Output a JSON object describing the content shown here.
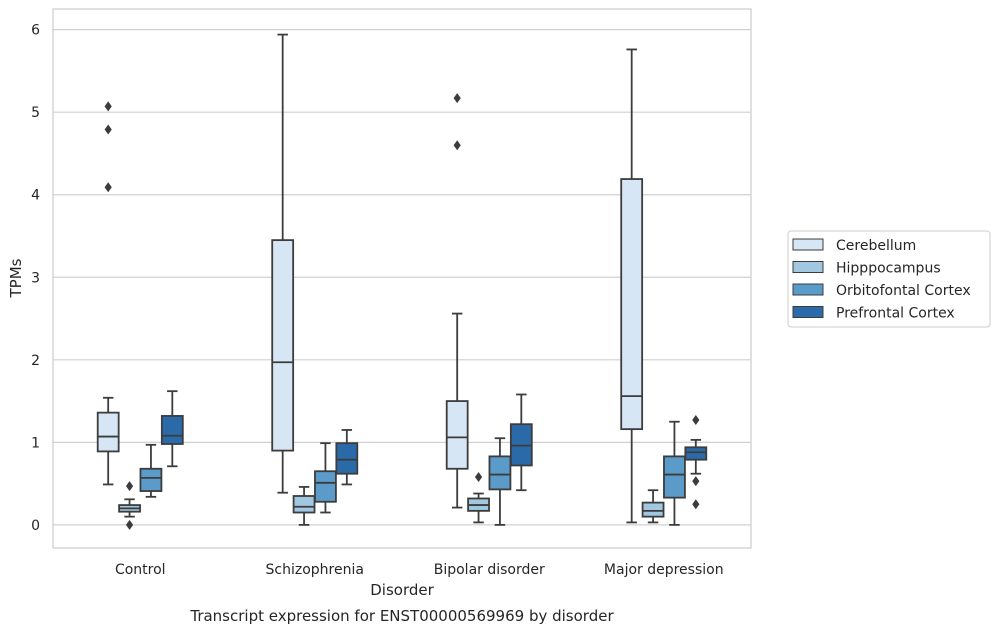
{
  "chart_data": {
    "type": "box",
    "caption": "Transcript expression for ENST00000569969 by disorder",
    "xlabel": "Disorder",
    "ylabel": "TPMs",
    "ylim": [
      -0.28,
      6.25
    ],
    "yticks": [
      0,
      1,
      2,
      3,
      4,
      5,
      6
    ],
    "grid": "horizontal",
    "legend_position": "right",
    "categories": [
      "Control",
      "Schizophrenia",
      "Bipolar disorder",
      "Major depression"
    ],
    "series": [
      {
        "name": "Cerebellum",
        "color": "#d6e6f4",
        "boxes": [
          {
            "whisker_low": 0.49,
            "q1": 0.89,
            "median": 1.07,
            "q3": 1.36,
            "whisker_high": 1.54,
            "outliers": [
              4.09,
              4.79,
              5.07
            ]
          },
          {
            "whisker_low": 0.39,
            "q1": 0.9,
            "median": 1.97,
            "q3": 3.45,
            "whisker_high": 5.94,
            "outliers": []
          },
          {
            "whisker_low": 0.21,
            "q1": 0.68,
            "median": 1.06,
            "q3": 1.5,
            "whisker_high": 2.56,
            "outliers": [
              4.6,
              5.17
            ]
          },
          {
            "whisker_low": 0.03,
            "q1": 1.16,
            "median": 1.56,
            "q3": 4.19,
            "whisker_high": 5.76,
            "outliers": []
          }
        ]
      },
      {
        "name": "Hipppocampus",
        "color": "#a1c8e0",
        "boxes": [
          {
            "whisker_low": 0.1,
            "q1": 0.16,
            "median": 0.2,
            "q3": 0.24,
            "whisker_high": 0.31,
            "outliers": [
              0.0,
              0.47
            ]
          },
          {
            "whisker_low": 0.0,
            "q1": 0.15,
            "median": 0.22,
            "q3": 0.35,
            "whisker_high": 0.46,
            "outliers": []
          },
          {
            "whisker_low": 0.03,
            "q1": 0.17,
            "median": 0.24,
            "q3": 0.32,
            "whisker_high": 0.38,
            "outliers": [
              0.58
            ]
          },
          {
            "whisker_low": 0.03,
            "q1": 0.1,
            "median": 0.17,
            "q3": 0.27,
            "whisker_high": 0.42,
            "outliers": []
          }
        ]
      },
      {
        "name": "Orbitofontal Cortex",
        "color": "#5b9bc9",
        "boxes": [
          {
            "whisker_low": 0.34,
            "q1": 0.41,
            "median": 0.57,
            "q3": 0.68,
            "whisker_high": 0.97,
            "outliers": []
          },
          {
            "whisker_low": 0.15,
            "q1": 0.28,
            "median": 0.51,
            "q3": 0.65,
            "whisker_high": 0.99,
            "outliers": []
          },
          {
            "whisker_low": 0.0,
            "q1": 0.43,
            "median": 0.61,
            "q3": 0.83,
            "whisker_high": 1.05,
            "outliers": []
          },
          {
            "whisker_low": 0.0,
            "q1": 0.33,
            "median": 0.61,
            "q3": 0.83,
            "whisker_high": 1.25,
            "outliers": []
          }
        ]
      },
      {
        "name": "Prefrontal Cortex",
        "color": "#2b6aa8",
        "boxes": [
          {
            "whisker_low": 0.71,
            "q1": 0.98,
            "median": 1.08,
            "q3": 1.32,
            "whisker_high": 1.62,
            "outliers": []
          },
          {
            "whisker_low": 0.49,
            "q1": 0.62,
            "median": 0.79,
            "q3": 0.99,
            "whisker_high": 1.15,
            "outliers": []
          },
          {
            "whisker_low": 0.42,
            "q1": 0.72,
            "median": 0.96,
            "q3": 1.22,
            "whisker_high": 1.58,
            "outliers": []
          },
          {
            "whisker_low": 0.62,
            "q1": 0.79,
            "median": 0.88,
            "q3": 0.94,
            "whisker_high": 1.03,
            "outliers": [
              0.25,
              0.53,
              1.27
            ]
          }
        ]
      }
    ]
  }
}
